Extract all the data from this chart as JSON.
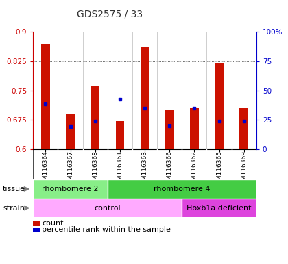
{
  "title": "GDS2575 / 33",
  "samples": [
    "GSM116364",
    "GSM116367",
    "GSM116368",
    "GSM116361",
    "GSM116363",
    "GSM116366",
    "GSM116362",
    "GSM116365",
    "GSM116369"
  ],
  "red_values": [
    0.868,
    0.69,
    0.762,
    0.672,
    0.862,
    0.7,
    0.706,
    0.82,
    0.706
  ],
  "blue_values": [
    0.716,
    0.658,
    0.672,
    0.728,
    0.706,
    0.66,
    0.706,
    0.672,
    0.672
  ],
  "y_min": 0.6,
  "y_max": 0.9,
  "y_ticks": [
    0.6,
    0.675,
    0.75,
    0.825,
    0.9
  ],
  "y_tick_labels": [
    "0.6",
    "0.675",
    "0.75",
    "0.825",
    "0.9"
  ],
  "right_y_ticks": [
    0,
    25,
    50,
    75,
    100
  ],
  "right_y_tick_labels": [
    "0",
    "25",
    "50",
    "75",
    "100%"
  ],
  "tissue_groups": [
    {
      "label": "rhombomere 2",
      "start": 0,
      "end": 3,
      "color": "#88ee88"
    },
    {
      "label": "rhombomere 4",
      "start": 3,
      "end": 9,
      "color": "#44cc44"
    }
  ],
  "strain_groups": [
    {
      "label": "control",
      "start": 0,
      "end": 6,
      "color": "#ffaaff"
    },
    {
      "label": "Hoxb1a deficient",
      "start": 6,
      "end": 9,
      "color": "#dd44dd"
    }
  ],
  "bar_color": "#cc1100",
  "dot_color": "#0000cc",
  "grid_color": "#333333",
  "plot_bg": "#ffffff",
  "label_bg": "#cccccc",
  "title_color": "#333333",
  "left_axis_color": "#cc0000",
  "right_axis_color": "#0000cc",
  "bar_width": 0.35
}
